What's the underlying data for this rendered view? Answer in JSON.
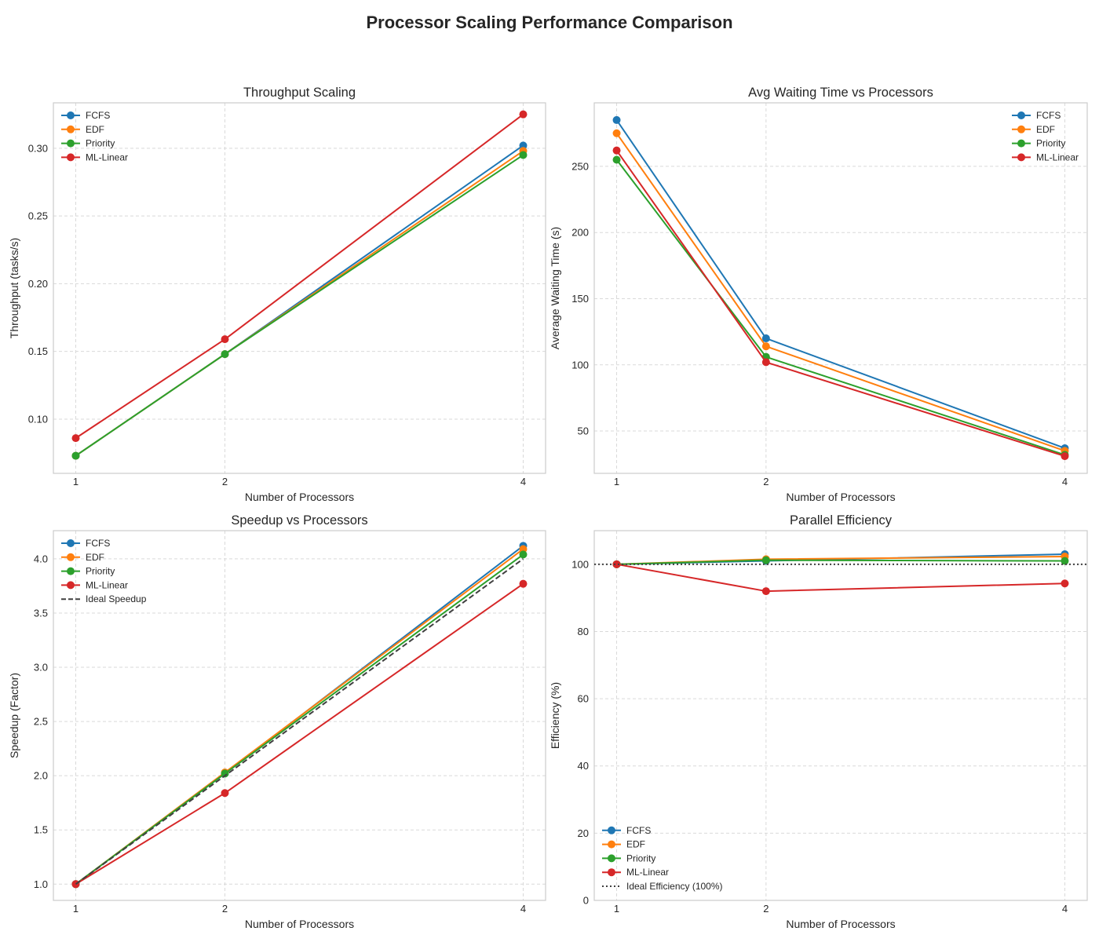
{
  "figure": {
    "title": "Processor Scaling Performance Comparison"
  },
  "chart_data": [
    {
      "type": "line",
      "title": "Throughput Scaling",
      "xlabel": "Number of Processors",
      "ylabel": "Throughput (tasks/s)",
      "x": [
        1,
        2,
        4
      ],
      "xticks": [
        "1",
        "2",
        "4"
      ],
      "xlim": [
        0.85,
        4.15
      ],
      "ylim": [
        0.06,
        0.3335
      ],
      "yticks": [
        0.1,
        0.15,
        0.2,
        0.25,
        0.3
      ],
      "ytick_labels": [
        "0.10",
        "0.15",
        "0.20",
        "0.25",
        "0.30"
      ],
      "grid": true,
      "legend_position": "upper-left",
      "series": [
        {
          "name": "FCFS",
          "color": "#1f77b4",
          "values": [
            0.073,
            0.148,
            0.302
          ],
          "marker": "circle",
          "dash": "solid"
        },
        {
          "name": "EDF",
          "color": "#ff7f0e",
          "values": [
            0.073,
            0.148,
            0.298
          ],
          "marker": "circle",
          "dash": "solid"
        },
        {
          "name": "Priority",
          "color": "#2ca02c",
          "values": [
            0.073,
            0.148,
            0.295
          ],
          "marker": "circle",
          "dash": "solid"
        },
        {
          "name": "ML-Linear",
          "color": "#d62728",
          "values": [
            0.086,
            0.159,
            0.325
          ],
          "marker": "circle",
          "dash": "solid"
        }
      ]
    },
    {
      "type": "line",
      "title": "Avg Waiting Time vs Processors",
      "xlabel": "Number of Processors",
      "ylabel": "Average Waiting Time (s)",
      "x": [
        1,
        2,
        4
      ],
      "xticks": [
        "1",
        "2",
        "4"
      ],
      "xlim": [
        0.85,
        4.15
      ],
      "ylim": [
        18,
        298
      ],
      "yticks": [
        50,
        100,
        150,
        200,
        250
      ],
      "ytick_labels": [
        "50",
        "100",
        "150",
        "200",
        "250"
      ],
      "grid": true,
      "legend_position": "upper-right",
      "series": [
        {
          "name": "FCFS",
          "color": "#1f77b4",
          "values": [
            285,
            120,
            37
          ],
          "marker": "circle",
          "dash": "solid"
        },
        {
          "name": "EDF",
          "color": "#ff7f0e",
          "values": [
            275,
            114,
            35
          ],
          "marker": "circle",
          "dash": "solid"
        },
        {
          "name": "Priority",
          "color": "#2ca02c",
          "values": [
            255,
            106,
            32
          ],
          "marker": "circle",
          "dash": "solid"
        },
        {
          "name": "ML-Linear",
          "color": "#d62728",
          "values": [
            262,
            102,
            31
          ],
          "marker": "circle",
          "dash": "solid"
        }
      ]
    },
    {
      "type": "line",
      "title": "Speedup vs Processors",
      "xlabel": "Number of Processors",
      "ylabel": "Speedup (Factor)",
      "x": [
        1,
        2,
        4
      ],
      "xticks": [
        "1",
        "2",
        "4"
      ],
      "xlim": [
        0.85,
        4.15
      ],
      "ylim": [
        0.85,
        4.26
      ],
      "yticks": [
        1.0,
        1.5,
        2.0,
        2.5,
        3.0,
        3.5,
        4.0
      ],
      "ytick_labels": [
        "1.0",
        "1.5",
        "2.0",
        "2.5",
        "3.0",
        "3.5",
        "4.0"
      ],
      "grid": true,
      "legend_position": "upper-left",
      "series": [
        {
          "name": "FCFS",
          "color": "#1f77b4",
          "values": [
            1.0,
            2.02,
            4.12
          ],
          "marker": "circle",
          "dash": "solid"
        },
        {
          "name": "EDF",
          "color": "#ff7f0e",
          "values": [
            1.0,
            2.03,
            4.09
          ],
          "marker": "circle",
          "dash": "solid"
        },
        {
          "name": "Priority",
          "color": "#2ca02c",
          "values": [
            1.0,
            2.02,
            4.04
          ],
          "marker": "circle",
          "dash": "solid"
        },
        {
          "name": "ML-Linear",
          "color": "#d62728",
          "values": [
            1.0,
            1.84,
            3.77
          ],
          "marker": "circle",
          "dash": "solid"
        },
        {
          "name": "Ideal Speedup",
          "color": "#404040",
          "values": [
            1.0,
            2.0,
            4.0
          ],
          "marker": "none",
          "dash": "dashed"
        }
      ]
    },
    {
      "type": "line",
      "title": "Parallel Efficiency",
      "xlabel": "Number of Processors",
      "ylabel": "Efficiency (%)",
      "x": [
        1,
        2,
        4
      ],
      "xticks": [
        "1",
        "2",
        "4"
      ],
      "xlim": [
        0.85,
        4.15
      ],
      "ylim": [
        0,
        110
      ],
      "yticks": [
        0,
        20,
        40,
        60,
        80,
        100
      ],
      "ytick_labels": [
        "0",
        "20",
        "40",
        "60",
        "80",
        "100"
      ],
      "grid": true,
      "legend_position": "lower-left",
      "series": [
        {
          "name": "FCFS",
          "color": "#1f77b4",
          "values": [
            100,
            101.0,
            103.0
          ],
          "marker": "circle",
          "dash": "solid"
        },
        {
          "name": "EDF",
          "color": "#ff7f0e",
          "values": [
            100,
            101.5,
            102.3
          ],
          "marker": "circle",
          "dash": "solid"
        },
        {
          "name": "Priority",
          "color": "#2ca02c",
          "values": [
            100,
            101.2,
            101.0
          ],
          "marker": "circle",
          "dash": "solid"
        },
        {
          "name": "ML-Linear",
          "color": "#d62728",
          "values": [
            100,
            92.0,
            94.3
          ],
          "marker": "circle",
          "dash": "solid"
        },
        {
          "name": "Ideal Efficiency (100%)",
          "color": "#404040",
          "values": [
            100,
            100,
            100
          ],
          "marker": "none",
          "dash": "dotted",
          "span": "full"
        }
      ]
    }
  ]
}
